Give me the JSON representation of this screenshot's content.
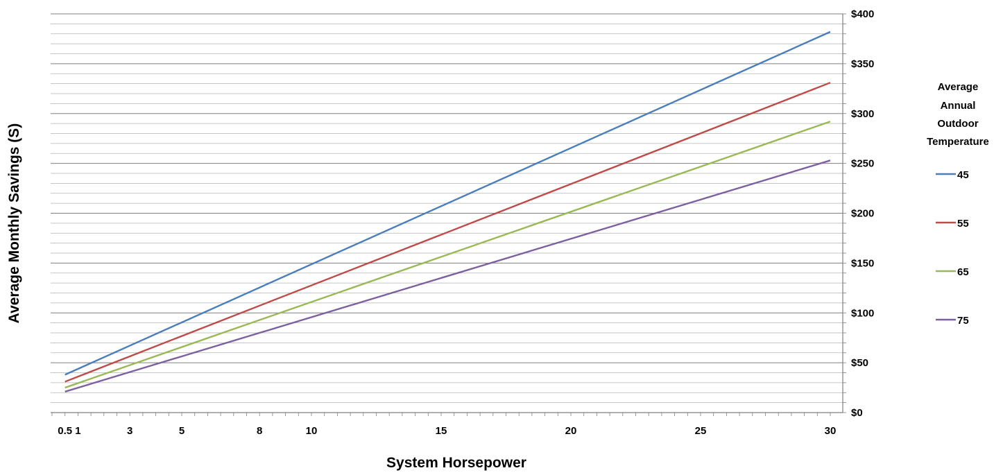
{
  "chart_data": {
    "type": "line",
    "xlabel": "System Horsepower",
    "ylabel": "Average Monthly Savings (S)",
    "xlim": [
      0,
      30
    ],
    "ylim": [
      0,
      400
    ],
    "x_ticks": [
      0.5,
      1,
      3,
      5,
      8,
      10,
      15,
      20,
      25,
      30
    ],
    "x_tick_labels": [
      "0.5",
      "1",
      "3",
      "5",
      "8",
      "10",
      "15",
      "20",
      "25",
      "30"
    ],
    "y_ticks": [
      0,
      50,
      100,
      150,
      200,
      250,
      300,
      350,
      400
    ],
    "y_tick_labels": [
      "$0",
      "$50",
      "$100",
      "$150",
      "$200",
      "$250",
      "$300",
      "$350",
      "$400"
    ],
    "y_axis_side": "right",
    "grid": true,
    "legend": {
      "title_lines": [
        "Average",
        "Annual",
        "Outdoor",
        "Temperature"
      ],
      "position": "right"
    },
    "series": [
      {
        "name": "45",
        "color": "#4a7ebb",
        "x": [
          0.5,
          30
        ],
        "y": [
          38,
          382
        ]
      },
      {
        "name": "55",
        "color": "#be4b48",
        "x": [
          0.5,
          30
        ],
        "y": [
          31,
          331
        ]
      },
      {
        "name": "65",
        "color": "#98b954",
        "x": [
          0.5,
          30
        ],
        "y": [
          25,
          292
        ]
      },
      {
        "name": "75",
        "color": "#7d60a0",
        "x": [
          0.5,
          30
        ],
        "y": [
          21,
          253
        ]
      }
    ]
  }
}
